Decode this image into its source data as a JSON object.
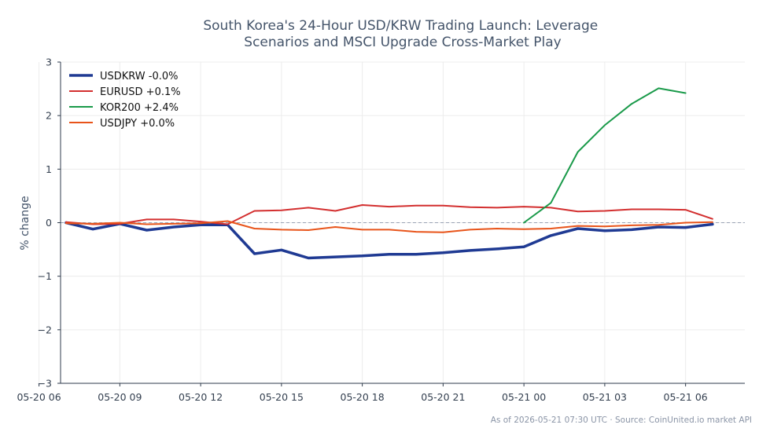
{
  "chart_data": {
    "type": "line",
    "title": "South Korea's 24-Hour USD/KRW Trading Launch: Leverage Scenarios and MSCI Upgrade Cross-Market Play",
    "title_lines": [
      "South Korea's 24-Hour USD/KRW Trading Launch: Leverage",
      "Scenarios and MSCI Upgrade Cross-Market Play"
    ],
    "xlabel": "",
    "ylabel": "% change",
    "ylim": [
      -3,
      3
    ],
    "yticks": [
      3,
      2,
      1,
      0,
      -1,
      -2,
      -3
    ],
    "ytick_labels": [
      "3",
      "2",
      "1",
      "0",
      "−1",
      "−2",
      "−3"
    ],
    "xlim": [
      "2026-05-20 06:48",
      "2026-05-21 08:12"
    ],
    "xticks": [
      "2026-05-20 06:00",
      "2026-05-20 09:00",
      "2026-05-20 12:00",
      "2026-05-20 15:00",
      "2026-05-20 18:00",
      "2026-05-20 21:00",
      "2026-05-21 00:00",
      "2026-05-21 03:00",
      "2026-05-21 06:00"
    ],
    "xtick_labels": [
      "05-20 06",
      "05-20 09",
      "05-20 12",
      "05-20 15",
      "05-20 18",
      "05-20 21",
      "05-21 00",
      "05-21 03",
      "05-21 06"
    ],
    "grid": true,
    "zero_line": true,
    "legend_position": "top-left",
    "x": [
      "2026-05-20 07:00",
      "2026-05-20 08:00",
      "2026-05-20 09:00",
      "2026-05-20 10:00",
      "2026-05-20 11:00",
      "2026-05-20 12:00",
      "2026-05-20 13:00",
      "2026-05-20 14:00",
      "2026-05-20 15:00",
      "2026-05-20 16:00",
      "2026-05-20 17:00",
      "2026-05-20 18:00",
      "2026-05-20 19:00",
      "2026-05-20 20:00",
      "2026-05-20 21:00",
      "2026-05-20 22:00",
      "2026-05-20 23:00",
      "2026-05-21 00:00",
      "2026-05-21 01:00",
      "2026-05-21 02:00",
      "2026-05-21 03:00",
      "2026-05-21 04:00",
      "2026-05-21 05:00",
      "2026-05-21 06:00",
      "2026-05-21 07:00"
    ],
    "series": [
      {
        "name": "USDKRW -0.0%",
        "color": "#1f3a93",
        "width": 3.5,
        "values": [
          0.0,
          -0.12,
          -0.02,
          -0.14,
          -0.08,
          -0.04,
          -0.04,
          -0.58,
          -0.51,
          -0.66,
          -0.64,
          -0.62,
          -0.59,
          -0.59,
          -0.56,
          -0.52,
          -0.49,
          -0.45,
          -0.24,
          -0.11,
          -0.15,
          -0.13,
          -0.08,
          -0.09,
          -0.03
        ]
      },
      {
        "name": "EURUSD +0.1%",
        "color": "#d32f2f",
        "width": 2,
        "values": [
          0.01,
          -0.03,
          -0.02,
          0.06,
          0.06,
          0.02,
          -0.03,
          0.22,
          0.23,
          0.28,
          0.22,
          0.33,
          0.3,
          0.32,
          0.32,
          0.29,
          0.28,
          0.3,
          0.28,
          0.21,
          0.22,
          0.25,
          0.25,
          0.24,
          0.07
        ]
      },
      {
        "name": "KOR200 +2.4%",
        "color": "#1a9a4a",
        "width": 2,
        "values": [
          null,
          null,
          null,
          null,
          null,
          null,
          null,
          null,
          null,
          null,
          null,
          null,
          null,
          null,
          null,
          null,
          null,
          0.0,
          0.37,
          1.32,
          1.82,
          2.22,
          2.51,
          2.42,
          null
        ]
      },
      {
        "name": "USDJPY +0.0%",
        "color": "#e8541a",
        "width": 2,
        "values": [
          -0.01,
          -0.02,
          0.0,
          -0.03,
          -0.02,
          -0.01,
          0.03,
          -0.11,
          -0.13,
          -0.14,
          -0.08,
          -0.13,
          -0.13,
          -0.17,
          -0.18,
          -0.13,
          -0.11,
          -0.12,
          -0.11,
          -0.06,
          -0.07,
          -0.05,
          -0.04,
          0.0,
          0.01
        ]
      }
    ]
  },
  "footer": "As of 2026-05-21 07:30 UTC · Source: CoinUnited.io market API"
}
